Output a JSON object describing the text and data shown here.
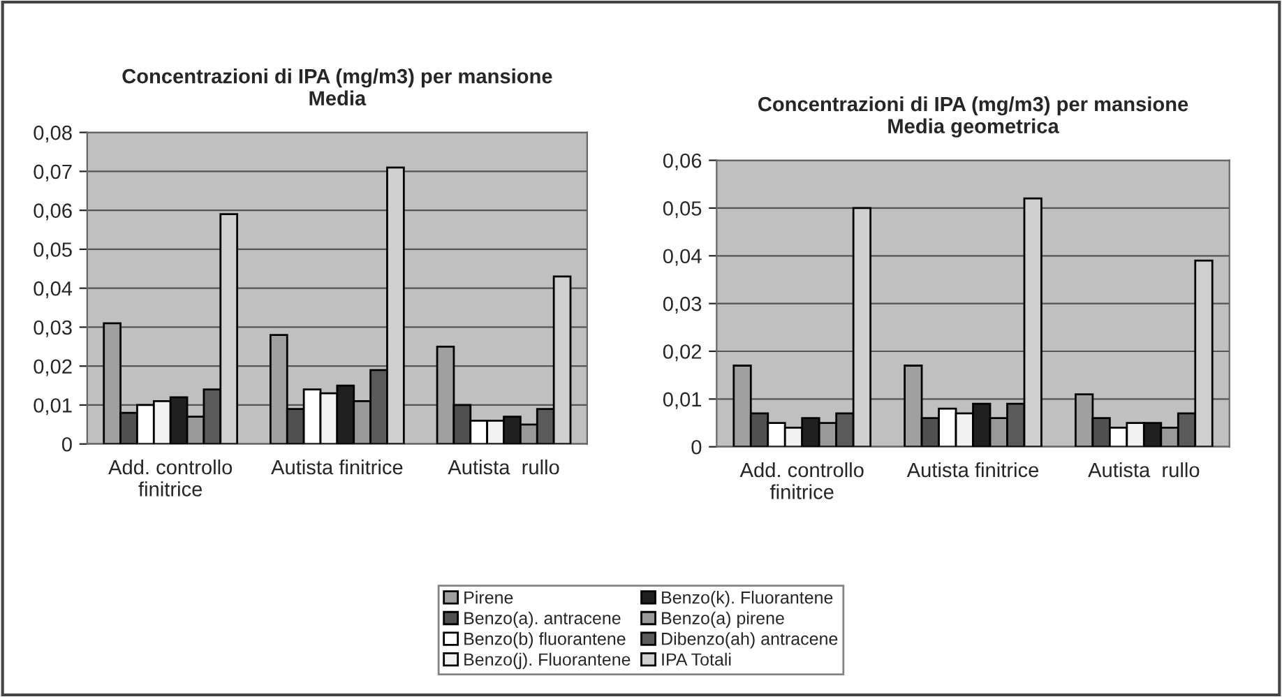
{
  "chart_data": [
    {
      "type": "bar",
      "title": "Concentrazioni di IPA (mg/m3) per mansione\nMedia",
      "categories": [
        "Add. controllo\nfinitrice",
        "Autista finitrice",
        "Autista  rullo"
      ],
      "series": [
        {
          "name": "Pirene",
          "color": "#a0a0a0",
          "values": [
            0.031,
            0.028,
            0.025
          ]
        },
        {
          "name": "Benzo(a). antracene",
          "color": "#505050",
          "values": [
            0.008,
            0.009,
            0.01
          ]
        },
        {
          "name": "Benzo(b) fluorantene",
          "color": "#ffffff",
          "values": [
            0.01,
            0.014,
            0.006
          ]
        },
        {
          "name": "Benzo(j). Fluorantene",
          "color": "#f2f2f2",
          "values": [
            0.011,
            0.013,
            0.006
          ]
        },
        {
          "name": "Benzo(k). Fluorantene",
          "color": "#202020",
          "values": [
            0.012,
            0.015,
            0.007
          ]
        },
        {
          "name": "Benzo(a) pirene",
          "color": "#999999",
          "values": [
            0.007,
            0.011,
            0.005
          ]
        },
        {
          "name": "Dibenzo(ah) antracene",
          "color": "#5a5a5a",
          "values": [
            0.014,
            0.019,
            0.009
          ]
        },
        {
          "name": "IPA Totali",
          "color": "#d0d0d0",
          "values": [
            0.059,
            0.071,
            0.043
          ]
        }
      ],
      "ylim": [
        0,
        0.08
      ],
      "yticks": [
        0,
        {
          "value": 0.01,
          "label": "0,01"
        },
        {
          "value": 0.02,
          "label": "0,02"
        },
        {
          "value": 0.03,
          "label": "0,03"
        },
        {
          "value": 0.04,
          "label": "0,04"
        },
        {
          "value": 0.05,
          "label": "0,05"
        },
        {
          "value": 0.06,
          "label": "0,06"
        },
        {
          "value": 0.07,
          "label": "0,07"
        },
        {
          "value": 0.08,
          "label": "0,08"
        }
      ],
      "grid": "y",
      "legend": "bottom"
    },
    {
      "type": "bar",
      "title": "Concentrazioni di IPA (mg/m3) per mansione\nMedia geometrica",
      "categories": [
        "Add. controllo\nfinitrice",
        "Autista finitrice",
        "Autista  rullo"
      ],
      "series": [
        {
          "color": "#a0a0a0",
          "values": [
            0.017,
            0.017,
            0.011
          ]
        },
        {
          "color": "#505050",
          "values": [
            0.007,
            0.006,
            0.006
          ]
        },
        {
          "color": "#ffffff",
          "values": [
            0.005,
            0.008,
            0.004
          ]
        },
        {
          "color": "#f2f2f2",
          "values": [
            0.004,
            0.007,
            0.005
          ]
        },
        {
          "color": "#202020",
          "values": [
            0.006,
            0.009,
            0.005
          ]
        },
        {
          "color": "#999999",
          "values": [
            0.005,
            0.006,
            0.004
          ]
        },
        {
          "color": "#5a5a5a",
          "values": [
            0.007,
            0.009,
            0.007
          ]
        },
        {
          "color": "#d0d0d0",
          "values": [
            0.05,
            0.052,
            0.039
          ]
        }
      ],
      "ylim": [
        0,
        0.06
      ],
      "yticks": [
        0,
        {
          "value": 0.01,
          "label": "0,01"
        },
        {
          "value": 0.02,
          "label": "0,02"
        },
        {
          "value": 0.03,
          "label": "0,03"
        },
        {
          "value": 0.04,
          "label": "0,04"
        },
        {
          "value": 0.05,
          "label": "0,05"
        },
        {
          "value": 0.06,
          "label": "0,06"
        }
      ],
      "grid": "y"
    }
  ]
}
